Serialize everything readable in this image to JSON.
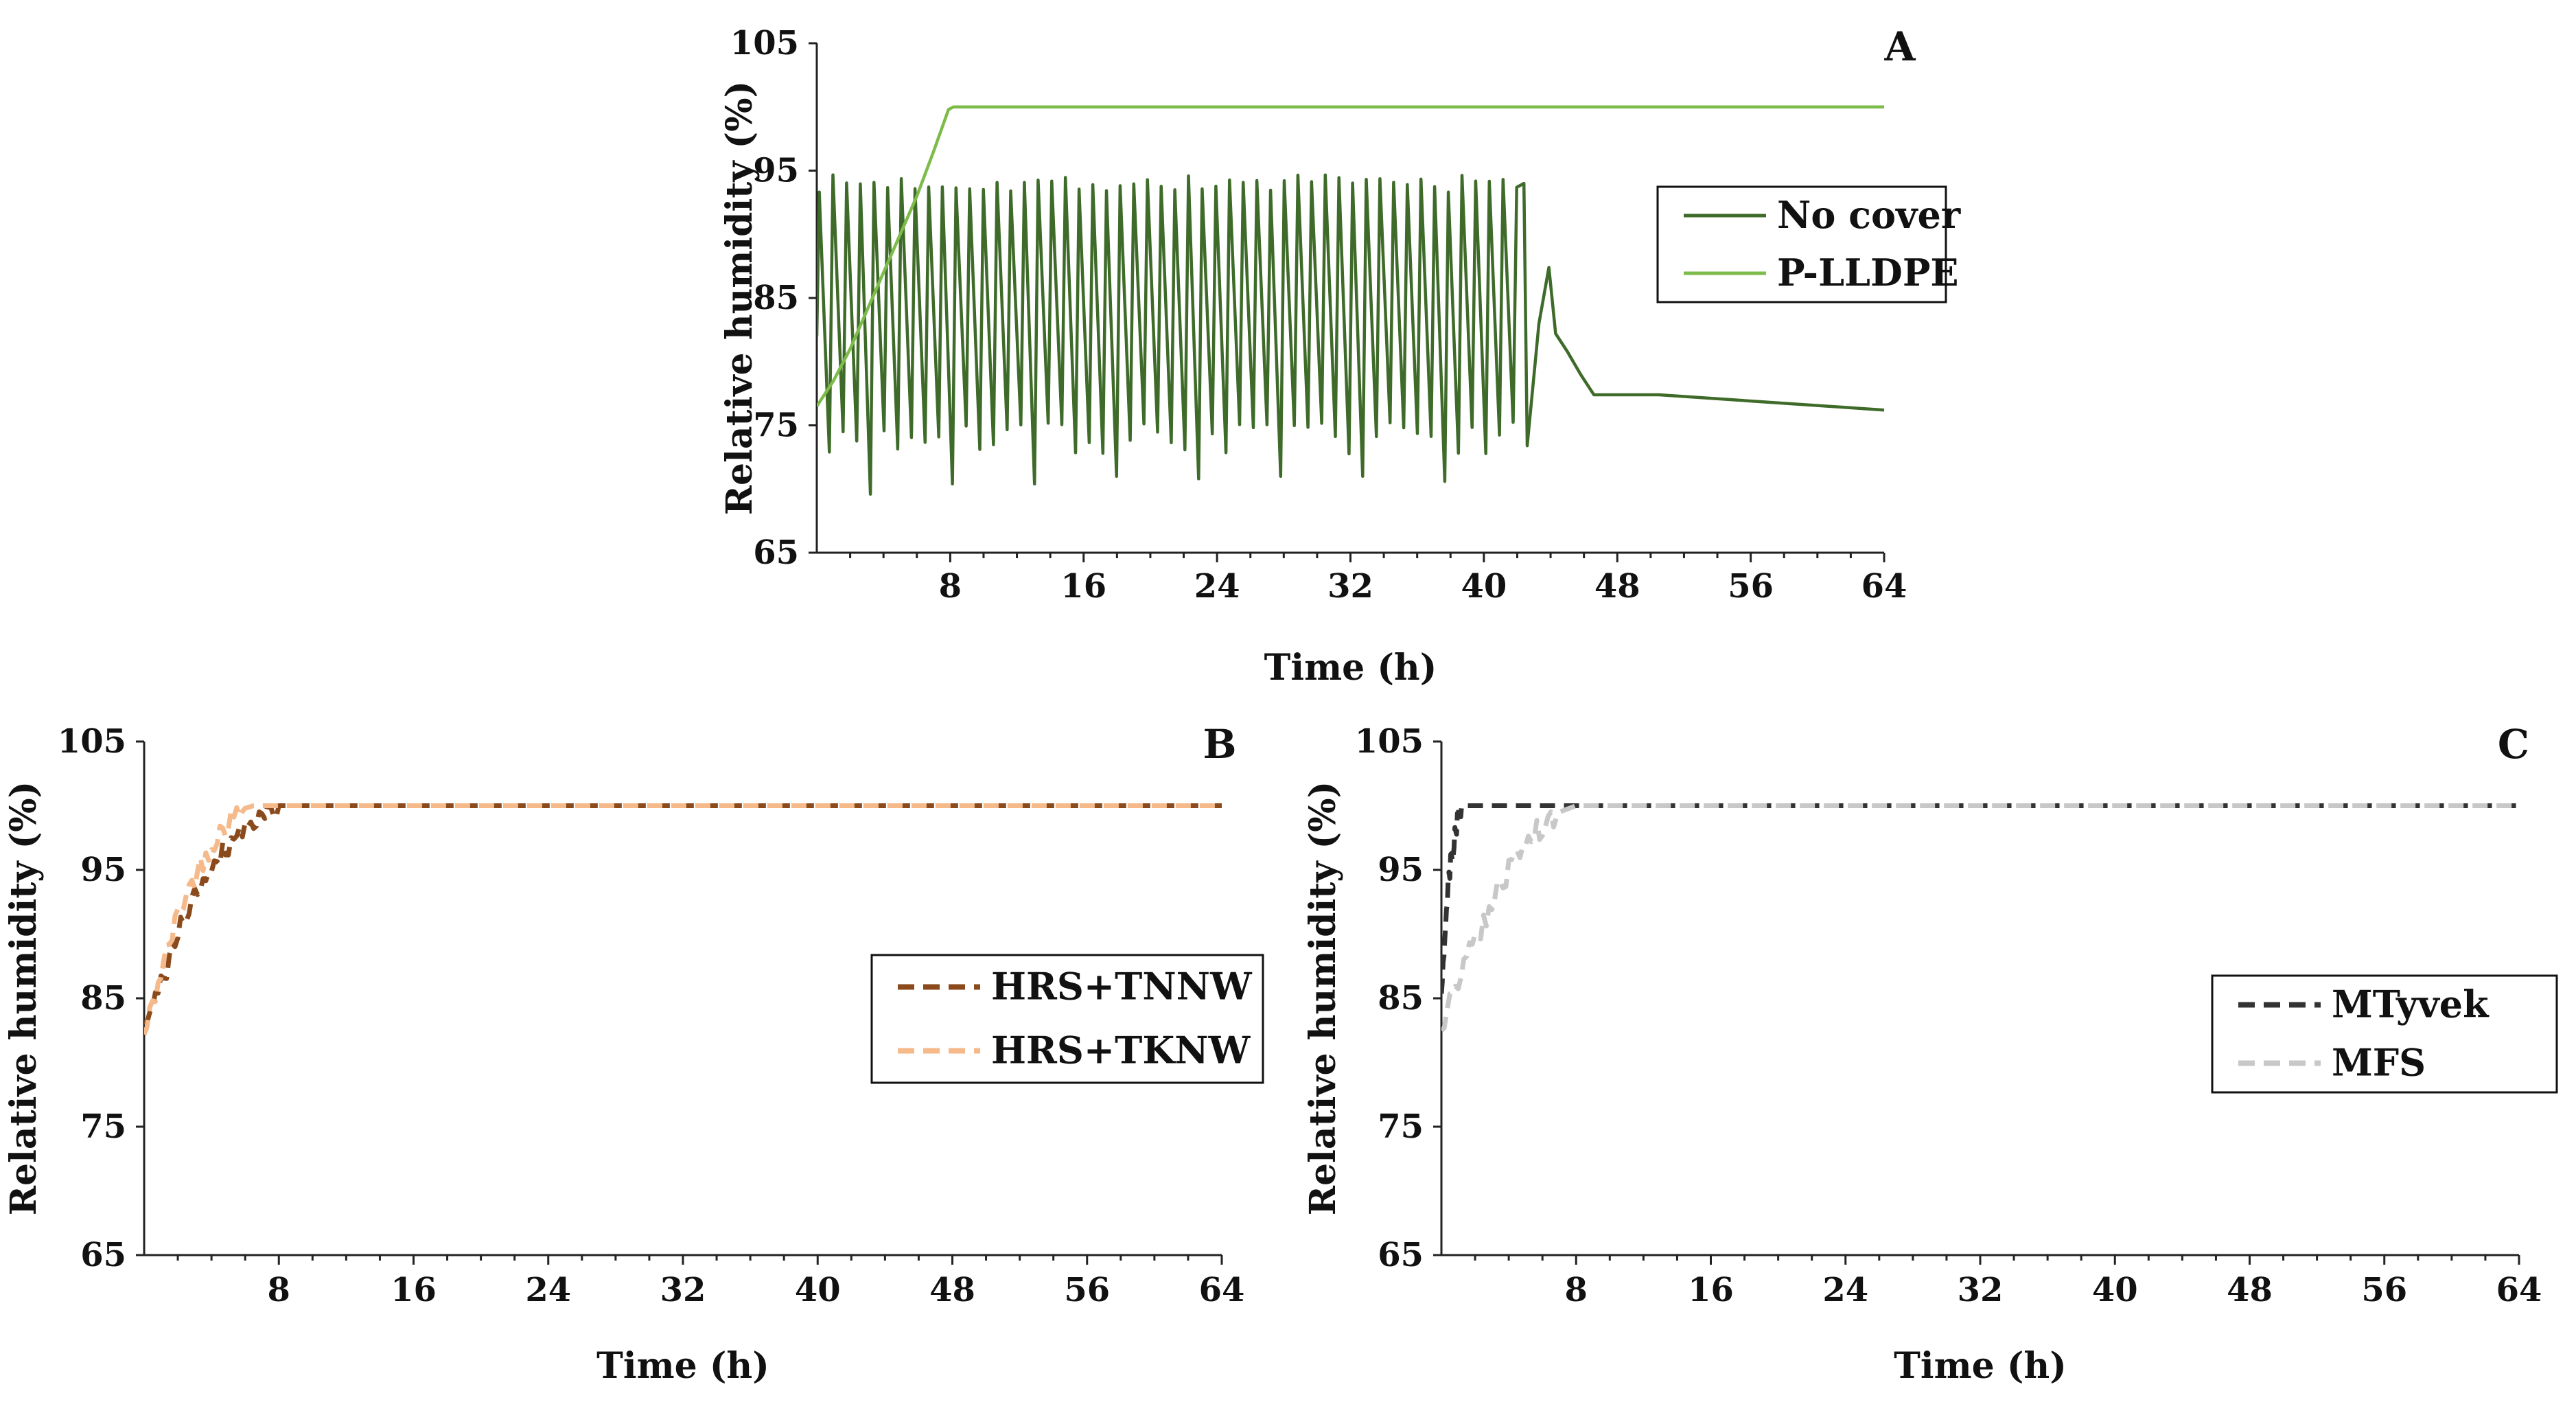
{
  "chart_data": [
    {
      "panel": "A",
      "type": "line",
      "xlabel": "Time (h)",
      "ylabel": "Relative humidity (%)",
      "xlim": [
        0,
        64
      ],
      "ylim": [
        65,
        105
      ],
      "xticks": [
        "8",
        "16",
        "24",
        "32",
        "40",
        "48",
        "56",
        "64"
      ],
      "yticks": [
        "65",
        "75",
        "85",
        "95",
        "105"
      ],
      "legend_position": "right-middle",
      "series": [
        {
          "name": "No cover",
          "color": "#3f6b2a",
          "dash": "solid",
          "oscillation": {
            "start": 0,
            "end": 42.4,
            "period": 0.82,
            "high": 94.0,
            "low": 74.0,
            "deep_lows": [
              69.6,
              70.4,
              71.0,
              70.8,
              71.0,
              70.6,
              69.6
            ]
          },
          "points": [
            [
              42.4,
              94.0
            ],
            [
              42.6,
              73.4
            ],
            [
              43.3,
              83.0
            ],
            [
              43.9,
              87.4
            ],
            [
              44.3,
              82.2
            ],
            [
              45.0,
              80.8
            ],
            [
              45.8,
              79.0
            ],
            [
              46.6,
              77.4
            ],
            [
              50.5,
              77.4
            ],
            [
              64,
              76.2
            ]
          ]
        },
        {
          "name": "P-LLDPE",
          "color": "#7dbb4a",
          "dash": "solid",
          "points": [
            [
              0,
              76.5
            ],
            [
              1,
              78.5
            ],
            [
              2,
              81
            ],
            [
              3,
              84
            ],
            [
              4,
              87
            ],
            [
              5,
              90
            ],
            [
              6,
              93
            ],
            [
              7,
              96.5
            ],
            [
              7.9,
              99.8
            ],
            [
              8.2,
              100
            ],
            [
              64,
              100
            ]
          ]
        }
      ]
    },
    {
      "panel": "B",
      "type": "line",
      "xlabel": "Time (h)",
      "ylabel": "Relative humidity (%)",
      "xlim": [
        0,
        64
      ],
      "ylim": [
        65,
        105
      ],
      "xticks": [
        "8",
        "16",
        "24",
        "32",
        "40",
        "48",
        "56",
        "64"
      ],
      "yticks": [
        "65",
        "75",
        "85",
        "95",
        "105"
      ],
      "legend_position": "right-middle",
      "series": [
        {
          "name": "HRS+TNNW",
          "color": "#8a4a1c",
          "dash": "dashed",
          "points": [
            [
              0,
              82.5
            ],
            [
              1,
              86
            ],
            [
              2,
              90
            ],
            [
              3,
              93
            ],
            [
              4,
              95.5
            ],
            [
              5,
              97
            ],
            [
              6,
              98.3
            ],
            [
              7,
              99.3
            ],
            [
              8,
              100
            ],
            [
              64,
              100
            ]
          ]
        },
        {
          "name": "HRS+TKNW",
          "color": "#f5b98a",
          "dash": "dashed",
          "points": [
            [
              0,
              82
            ],
            [
              1,
              87
            ],
            [
              2,
              91.5
            ],
            [
              3,
              94.5
            ],
            [
              4,
              97
            ],
            [
              5,
              98.8
            ],
            [
              6,
              99.8
            ],
            [
              6.5,
              100
            ],
            [
              64,
              100
            ]
          ]
        }
      ]
    },
    {
      "panel": "C",
      "type": "line",
      "xlabel": "Time (h)",
      "ylabel": "Relative humidity (%)",
      "xlim": [
        0,
        64
      ],
      "ylim": [
        65,
        105
      ],
      "xticks": [
        "8",
        "16",
        "24",
        "32",
        "40",
        "48",
        "56",
        "64"
      ],
      "yticks": [
        "65",
        "75",
        "85",
        "95",
        "105"
      ],
      "legend_position": "right-middle",
      "series": [
        {
          "name": "MTyvek",
          "color": "#333333",
          "dash": "dashed",
          "points": [
            [
              0,
              86
            ],
            [
              0.3,
              92
            ],
            [
              0.6,
              96
            ],
            [
              0.9,
              98.5
            ],
            [
              1.2,
              100
            ],
            [
              64,
              100
            ]
          ]
        },
        {
          "name": "MFS",
          "color": "#c8c8c8",
          "dash": "dashed",
          "points": [
            [
              0,
              83
            ],
            [
              1,
              86.5
            ],
            [
              2,
              89.5
            ],
            [
              3,
              92.5
            ],
            [
              4,
              95
            ],
            [
              5,
              97
            ],
            [
              6,
              98.5
            ],
            [
              7,
              99.5
            ],
            [
              8,
              100
            ],
            [
              64,
              100
            ]
          ]
        }
      ]
    }
  ]
}
